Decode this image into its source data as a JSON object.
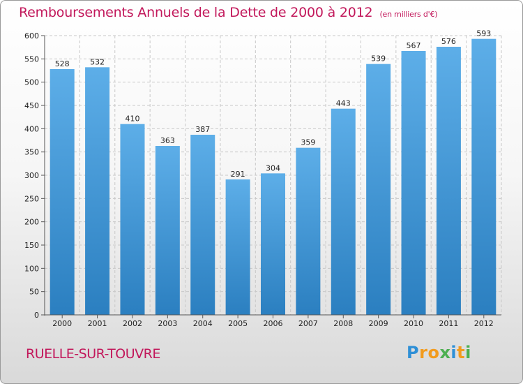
{
  "chart_data": {
    "type": "bar",
    "title": "Remboursements Annuels de la Dette de 2000 à 2012",
    "subtitle": "(en milliers d'€)",
    "categories": [
      "2000",
      "2001",
      "2002",
      "2003",
      "2004",
      "2005",
      "2006",
      "2007",
      "2008",
      "2009",
      "2010",
      "2011",
      "2012"
    ],
    "values": [
      528,
      532,
      410,
      363,
      387,
      291,
      304,
      359,
      443,
      539,
      567,
      576,
      593
    ],
    "ylim": [
      0,
      600
    ],
    "yticks": [
      0,
      50,
      100,
      150,
      200,
      250,
      300,
      350,
      400,
      450,
      500,
      550,
      600
    ],
    "grid": true,
    "bar_color_top": "#5daee8",
    "bar_color_bottom": "#2b7fc0"
  },
  "footer": {
    "commune": "RUELLE-SUR-TOUVRE",
    "logo_letters": [
      {
        "ch": "P",
        "color": "#2e8fd6"
      },
      {
        "ch": "r",
        "color": "#f29b1d"
      },
      {
        "ch": "o",
        "color": "#f29b1d"
      },
      {
        "ch": "x",
        "color": "#4caf50"
      },
      {
        "ch": "i",
        "color": "#2e8fd6"
      },
      {
        "ch": "t",
        "color": "#f29b1d"
      },
      {
        "ch": "i",
        "color": "#4caf50"
      }
    ]
  },
  "colors": {
    "title": "#c2185b",
    "grid": "#c8c8c8",
    "axis_text": "#222222"
  }
}
